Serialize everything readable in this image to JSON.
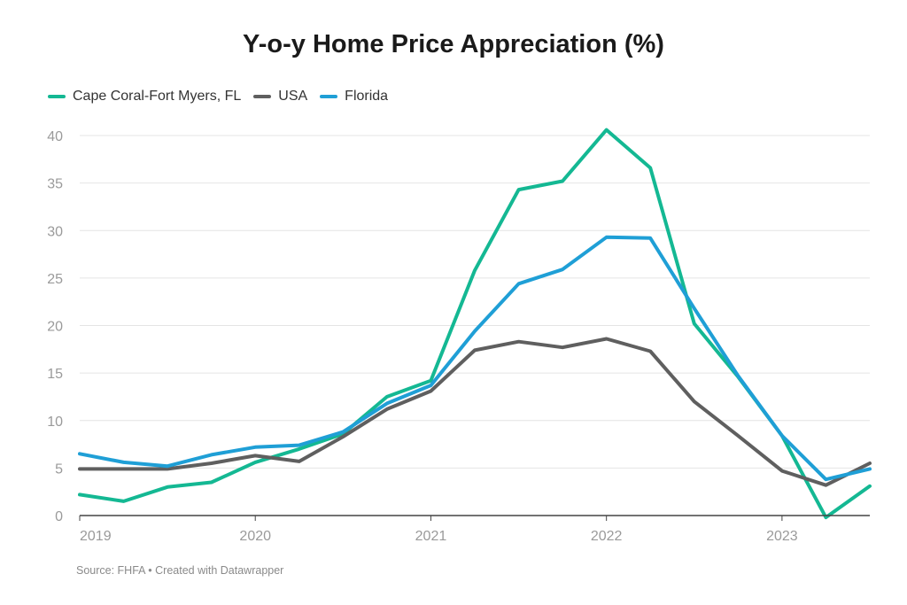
{
  "title": "Y-o-y Home Price Appreciation (%)",
  "source": "Source: FHFA • Created with Datawrapper",
  "chart_data": {
    "type": "line",
    "title": "Y-o-y Home Price Appreciation (%)",
    "xlabel": "",
    "ylabel": "",
    "xlim": [
      2019,
      2023.5
    ],
    "ylim": [
      0,
      40
    ],
    "x_ticks": [
      2019,
      2020,
      2021,
      2022,
      2023
    ],
    "y_ticks": [
      0,
      5,
      10,
      15,
      20,
      25,
      30,
      35,
      40
    ],
    "grid": true,
    "legend_position": "top-left",
    "x": [
      2019,
      2019.25,
      2019.5,
      2019.75,
      2020,
      2020.25,
      2020.5,
      2020.75,
      2021,
      2021.25,
      2021.5,
      2021.75,
      2022,
      2022.25,
      2022.5,
      2022.75,
      2023,
      2023.25,
      2023.5
    ],
    "series": [
      {
        "name": "Cape Coral-Fort Myers, FL",
        "color": "#14b893",
        "values": [
          2.2,
          1.5,
          3.0,
          3.5,
          5.6,
          7.0,
          8.6,
          12.5,
          14.2,
          25.8,
          34.3,
          35.2,
          40.6,
          36.6,
          20.2,
          14.6,
          8.4,
          -0.2,
          3.1
        ]
      },
      {
        "name": "USA",
        "color": "#5f5f5f",
        "values": [
          4.9,
          4.9,
          4.9,
          5.5,
          6.3,
          5.7,
          8.3,
          11.2,
          13.1,
          17.4,
          18.3,
          17.7,
          18.6,
          17.3,
          12.0,
          8.4,
          4.7,
          3.2,
          5.5
        ]
      },
      {
        "name": "Florida",
        "color": "#1f9fd6",
        "values": [
          6.5,
          5.6,
          5.2,
          6.4,
          7.2,
          7.4,
          8.8,
          11.8,
          13.7,
          19.4,
          24.4,
          25.9,
          29.3,
          29.2,
          21.8,
          14.7,
          8.4,
          3.8,
          4.9
        ]
      }
    ]
  }
}
